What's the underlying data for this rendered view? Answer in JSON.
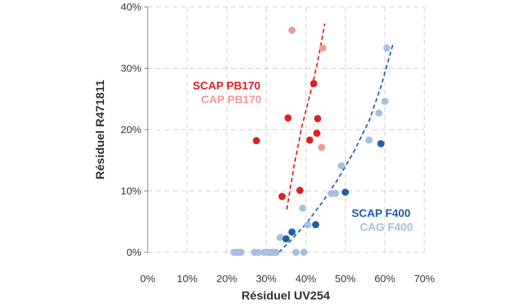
{
  "chart_data": {
    "type": "scatter",
    "title": "",
    "xlabel": "Résiduel UV254",
    "ylabel": "Résiduel R471811",
    "xlim": [
      0,
      70
    ],
    "ylim": [
      0,
      40
    ],
    "x_ticks": [
      "0%",
      "10%",
      "20%",
      "30%",
      "40%",
      "50%",
      "60%",
      "70%"
    ],
    "y_ticks": [
      "0%",
      "10%",
      "20%",
      "30%",
      "40%"
    ],
    "grid": true,
    "legend": [
      {
        "label": "SCAP PB170",
        "color": "#e02020",
        "placement": "left-middle"
      },
      {
        "label": "CAP PB170",
        "color": "#f09a9a",
        "placement": "left-middle"
      },
      {
        "label": "SCAP F400",
        "color": "#1f5fa8",
        "placement": "bottom-right"
      },
      {
        "label": "CAG F400",
        "color": "#a9bfe0",
        "placement": "bottom-right"
      }
    ],
    "series": [
      {
        "name": "SCAP PB170",
        "color": "#e02020",
        "points": [
          [
            27.5,
            18.2
          ],
          [
            34,
            9.1
          ],
          [
            35.5,
            21.9
          ],
          [
            38.5,
            10.1
          ],
          [
            41,
            18.3
          ],
          [
            42,
            27.5
          ],
          [
            42.8,
            19.4
          ],
          [
            43,
            21.8
          ]
        ]
      },
      {
        "name": "CAP PB170",
        "color": "#f09a9a",
        "points": [
          [
            36.5,
            36.2
          ],
          [
            44,
            17.1
          ],
          [
            44.3,
            33.3
          ]
        ]
      },
      {
        "name": "SCAP F400",
        "color": "#1f5fa8",
        "points": [
          [
            35,
            2.2
          ],
          [
            36.5,
            3.3
          ],
          [
            42.5,
            4.5
          ],
          [
            50,
            9.8
          ],
          [
            59,
            17.7
          ]
        ]
      },
      {
        "name": "CAG F400",
        "color": "#a9bfe0",
        "points": [
          [
            21.8,
            0
          ],
          [
            22.4,
            0
          ],
          [
            23,
            0
          ],
          [
            23.6,
            0
          ],
          [
            27,
            0
          ],
          [
            28,
            0
          ],
          [
            29.5,
            0
          ],
          [
            30.5,
            0
          ],
          [
            31.2,
            0
          ],
          [
            31.8,
            0
          ],
          [
            32.5,
            0
          ],
          [
            33.5,
            2.4
          ],
          [
            37.5,
            0
          ],
          [
            39.5,
            0
          ],
          [
            39.2,
            7.2
          ],
          [
            40.5,
            4.5
          ],
          [
            46.5,
            9.6
          ],
          [
            47.5,
            9.6
          ],
          [
            49,
            14.1
          ],
          [
            56,
            18.3
          ],
          [
            58.5,
            22.7
          ],
          [
            60,
            24.6
          ],
          [
            60.5,
            33.3
          ]
        ]
      }
    ],
    "trendlines": [
      {
        "name": "PB170 trend",
        "color": "#e02020",
        "style": "dashed",
        "points": [
          [
            35.2,
            7
          ],
          [
            37,
            14
          ],
          [
            39,
            20.5
          ],
          [
            41,
            25.5
          ],
          [
            43,
            31
          ],
          [
            44.8,
            37.3
          ]
        ]
      },
      {
        "name": "F400 trend",
        "color": "#1f5fa8",
        "style": "dashed",
        "points": [
          [
            33.2,
            0
          ],
          [
            36,
            1.8
          ],
          [
            40,
            4.6
          ],
          [
            44,
            8
          ],
          [
            48,
            11.8
          ],
          [
            52,
            16.2
          ],
          [
            56,
            21.4
          ],
          [
            59,
            27
          ],
          [
            62,
            33.8
          ]
        ]
      }
    ]
  }
}
